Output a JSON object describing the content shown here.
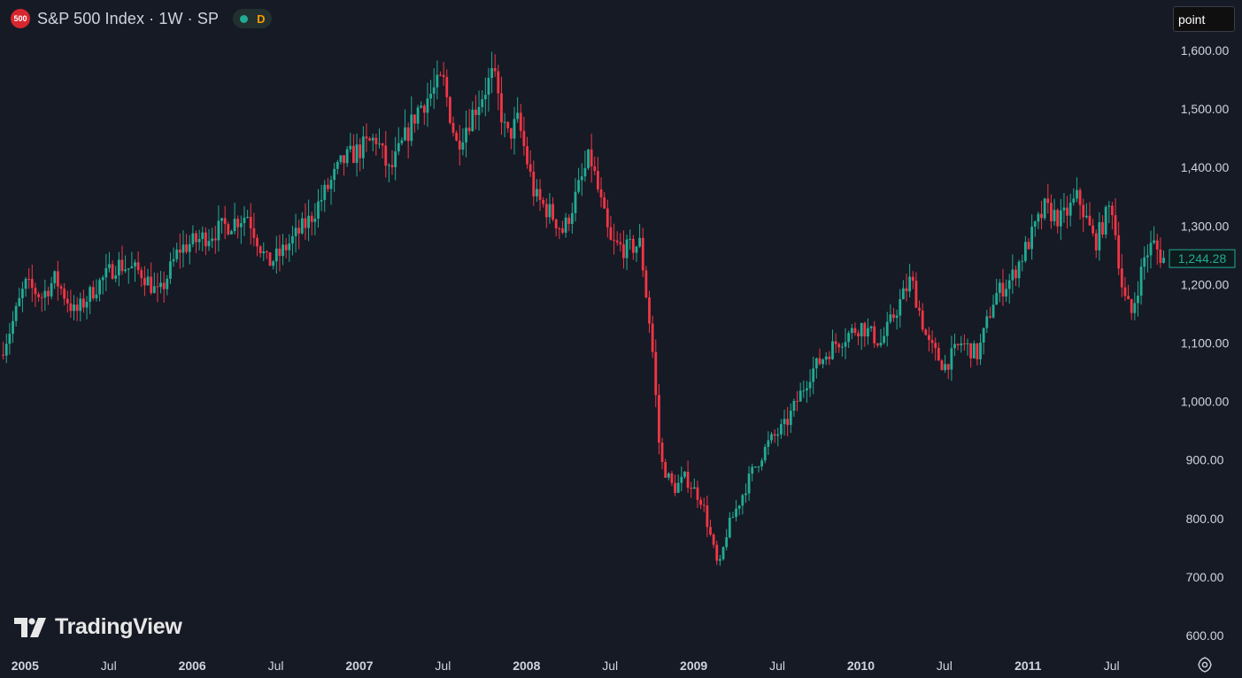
{
  "header": {
    "symbol_badge": "500",
    "title": "S&P 500 Index · 1W · SP",
    "status_letter": "D"
  },
  "toolbar": {
    "mode_label": "point"
  },
  "branding": {
    "logo_text": "TradingView",
    "logo_icon": "tradingview-logo-icon"
  },
  "icons": {
    "settings": "gear-icon"
  },
  "colors": {
    "background": "#161a25",
    "up": "#22ab94",
    "down": "#f23645",
    "text": "#d1d4dc"
  },
  "chart_data": {
    "type": "candlestick",
    "interval": "1W",
    "ylim": [
      600,
      1600
    ],
    "y_ticks": [
      "1,600.00",
      "1,500.00",
      "1,400.00",
      "1,300.00",
      "1,200.00",
      "1,100.00",
      "1,000.00",
      "900.00",
      "800.00",
      "700.00",
      "600.00"
    ],
    "y_tick_values": [
      1600,
      1500,
      1400,
      1300,
      1200,
      1100,
      1000,
      900,
      800,
      700,
      600
    ],
    "x_range": [
      2004.85,
      2011.83
    ],
    "x_ticks": [
      {
        "label": "2005",
        "t": 2005.0
      },
      {
        "label": "Jul",
        "t": 2005.5
      },
      {
        "label": "2006",
        "t": 2006.0
      },
      {
        "label": "Jul",
        "t": 2006.5
      },
      {
        "label": "2007",
        "t": 2007.0
      },
      {
        "label": "Jul",
        "t": 2007.5
      },
      {
        "label": "2008",
        "t": 2008.0
      },
      {
        "label": "Jul",
        "t": 2008.5
      },
      {
        "label": "2009",
        "t": 2009.0
      },
      {
        "label": "Jul",
        "t": 2009.5
      },
      {
        "label": "2010",
        "t": 2010.0
      },
      {
        "label": "Jul",
        "t": 2010.5
      },
      {
        "label": "2011",
        "t": 2011.0
      },
      {
        "label": "Jul",
        "t": 2011.5
      }
    ],
    "last_price": 1244.28,
    "last_price_label": "1,244.28",
    "close_series": [
      {
        "t": 2004.85,
        "v": 1080
      },
      {
        "t": 2004.92,
        "v": 1130
      },
      {
        "t": 2005.0,
        "v": 1200
      },
      {
        "t": 2005.1,
        "v": 1180
      },
      {
        "t": 2005.18,
        "v": 1210
      },
      {
        "t": 2005.3,
        "v": 1150
      },
      {
        "t": 2005.42,
        "v": 1195
      },
      {
        "t": 2005.55,
        "v": 1235
      },
      {
        "t": 2005.7,
        "v": 1220
      },
      {
        "t": 2005.8,
        "v": 1180
      },
      {
        "t": 2005.92,
        "v": 1260
      },
      {
        "t": 2006.1,
        "v": 1285
      },
      {
        "t": 2006.33,
        "v": 1320
      },
      {
        "t": 2006.45,
        "v": 1235
      },
      {
        "t": 2006.52,
        "v": 1250
      },
      {
        "t": 2006.7,
        "v": 1310
      },
      {
        "t": 2006.9,
        "v": 1410
      },
      {
        "t": 2007.1,
        "v": 1450
      },
      {
        "t": 2007.18,
        "v": 1390
      },
      {
        "t": 2007.35,
        "v": 1500
      },
      {
        "t": 2007.5,
        "v": 1550
      },
      {
        "t": 2007.58,
        "v": 1440
      },
      {
        "t": 2007.8,
        "v": 1560
      },
      {
        "t": 2007.88,
        "v": 1450
      },
      {
        "t": 2007.95,
        "v": 1480
      },
      {
        "t": 2008.05,
        "v": 1350
      },
      {
        "t": 2008.15,
        "v": 1320
      },
      {
        "t": 2008.22,
        "v": 1290
      },
      {
        "t": 2008.38,
        "v": 1420
      },
      {
        "t": 2008.5,
        "v": 1270
      },
      {
        "t": 2008.6,
        "v": 1260
      },
      {
        "t": 2008.68,
        "v": 1270
      },
      {
        "t": 2008.75,
        "v": 1100
      },
      {
        "t": 2008.8,
        "v": 900
      },
      {
        "t": 2008.88,
        "v": 850
      },
      {
        "t": 2008.95,
        "v": 870
      },
      {
        "t": 2009.05,
        "v": 830
      },
      {
        "t": 2009.15,
        "v": 710
      },
      {
        "t": 2009.2,
        "v": 780
      },
      {
        "t": 2009.35,
        "v": 880
      },
      {
        "t": 2009.45,
        "v": 930
      },
      {
        "t": 2009.55,
        "v": 960
      },
      {
        "t": 2009.7,
        "v": 1050
      },
      {
        "t": 2009.85,
        "v": 1100
      },
      {
        "t": 2010.0,
        "v": 1130
      },
      {
        "t": 2010.12,
        "v": 1100
      },
      {
        "t": 2010.3,
        "v": 1210
      },
      {
        "t": 2010.4,
        "v": 1100
      },
      {
        "t": 2010.5,
        "v": 1060
      },
      {
        "t": 2010.6,
        "v": 1100
      },
      {
        "t": 2010.7,
        "v": 1080
      },
      {
        "t": 2010.8,
        "v": 1180
      },
      {
        "t": 2010.9,
        "v": 1210
      },
      {
        "t": 2011.1,
        "v": 1330
      },
      {
        "t": 2011.2,
        "v": 1310
      },
      {
        "t": 2011.3,
        "v": 1350
      },
      {
        "t": 2011.4,
        "v": 1270
      },
      {
        "t": 2011.5,
        "v": 1340
      },
      {
        "t": 2011.57,
        "v": 1180
      },
      {
        "t": 2011.62,
        "v": 1150
      },
      {
        "t": 2011.7,
        "v": 1250
      },
      {
        "t": 2011.75,
        "v": 1270
      },
      {
        "t": 2011.8,
        "v": 1245
      },
      {
        "t": 2011.83,
        "v": 1244.28
      }
    ]
  }
}
